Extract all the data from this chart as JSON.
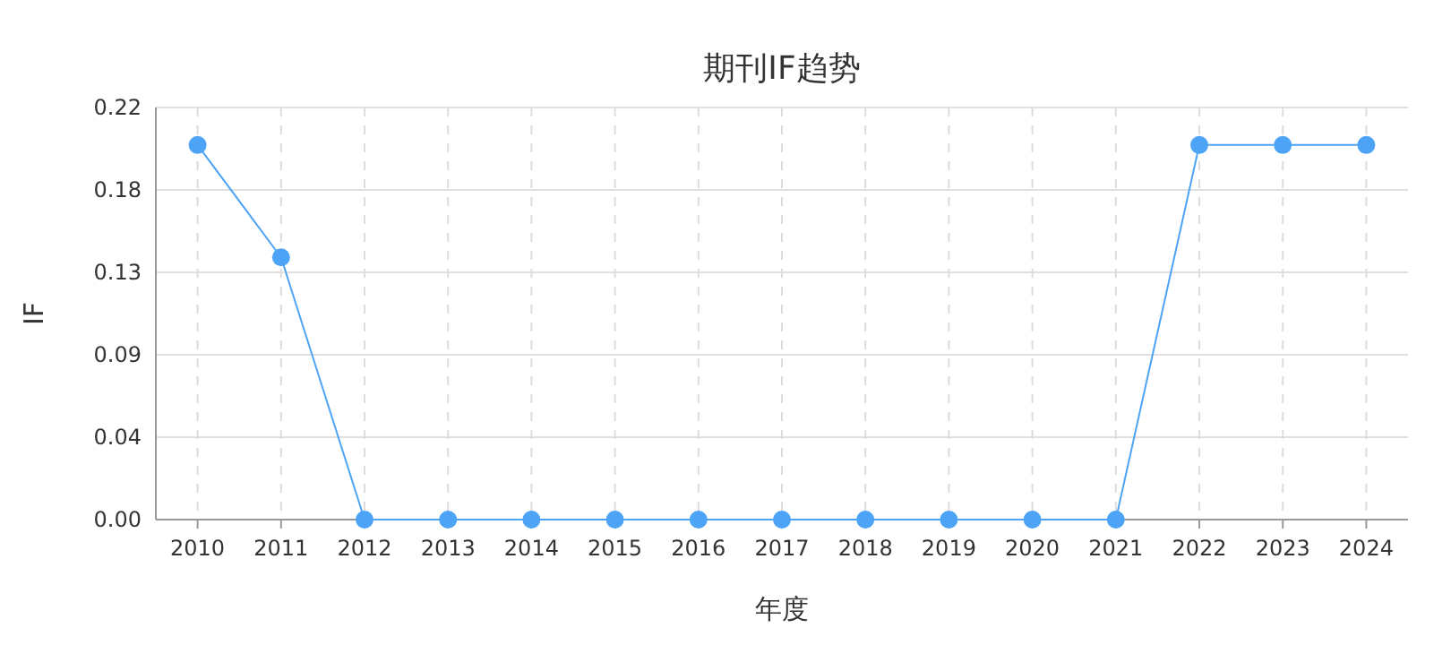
{
  "chart_data": {
    "type": "line",
    "title": "期刊IF趋势",
    "xlabel": "年度",
    "ylabel": "IF",
    "categories": [
      "2010",
      "2011",
      "2012",
      "2013",
      "2014",
      "2015",
      "2016",
      "2017",
      "2018",
      "2019",
      "2020",
      "2021",
      "2022",
      "2023",
      "2024"
    ],
    "series": [
      {
        "color": "#4da3f5",
        "values": [
          0.2,
          0.14,
          0,
          0,
          0,
          0,
          0,
          0,
          0,
          0,
          0,
          0,
          0.2,
          0.2,
          0.2
        ]
      }
    ],
    "ylim": [
      0,
      0.22
    ],
    "yticks": [
      {
        "value": 0,
        "label": "0.00"
      },
      {
        "value": 0.044,
        "label": "0.04"
      },
      {
        "value": 0.088,
        "label": "0.09"
      },
      {
        "value": 0.132,
        "label": "0.13"
      },
      {
        "value": 0.176,
        "label": "0.18"
      },
      {
        "value": 0.22,
        "label": "0.22"
      }
    ],
    "grid": true,
    "marker": "circle",
    "line_style": "solid"
  }
}
